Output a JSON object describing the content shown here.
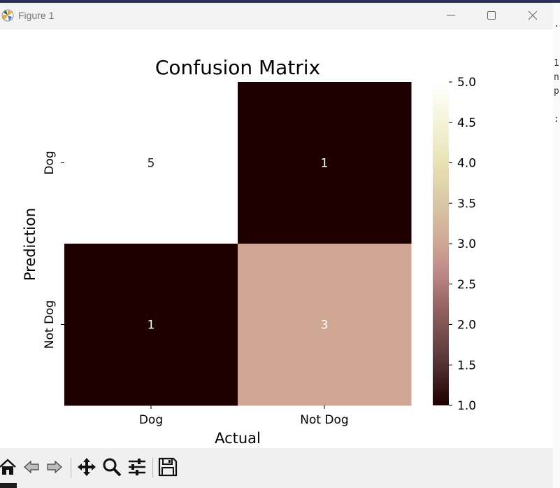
{
  "window": {
    "title": "Figure 1"
  },
  "chart_data": {
    "type": "heatmap",
    "title": "Confusion Matrix",
    "xlabel": "Actual",
    "ylabel": "Prediction",
    "x_categories": [
      "Dog",
      "Not Dog"
    ],
    "y_categories": [
      "Dog",
      "Not Dog"
    ],
    "values": [
      [
        5,
        1
      ],
      [
        1,
        3
      ]
    ],
    "cell_labels": [
      [
        "5",
        "1"
      ],
      [
        "1",
        "3"
      ]
    ],
    "colorbar": {
      "min": 1.0,
      "max": 5.0,
      "ticks": [
        "1.0",
        "1.5",
        "2.0",
        "2.5",
        "3.0",
        "3.5",
        "4.0",
        "4.5",
        "5.0"
      ],
      "colormap": "pink"
    }
  },
  "toolbar": {
    "items": [
      "home-icon",
      "back-icon",
      "forward-icon",
      "pan-icon",
      "zoom-icon",
      "configure-subplots-icon",
      "save-icon"
    ]
  },
  "background_text": [
    ".5",
    "1",
    "n",
    "p",
    ":"
  ]
}
